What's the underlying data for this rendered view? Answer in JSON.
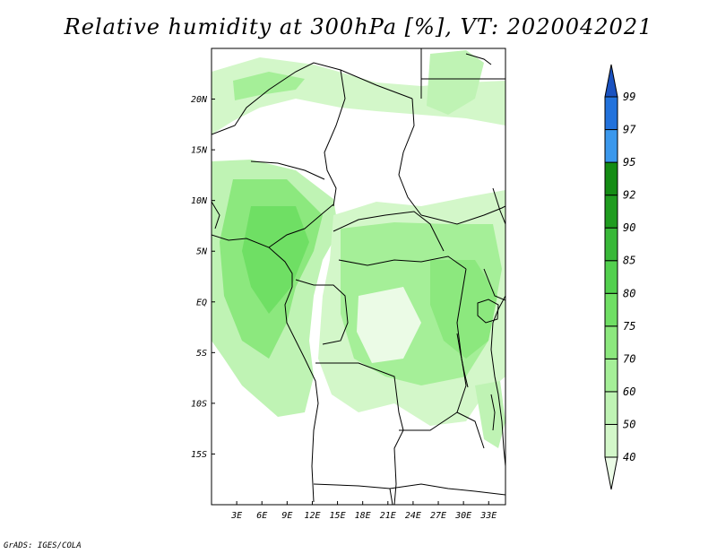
{
  "title": "Relative humidity at 300hPa [%], VT: 2020042021",
  "footer": "GrADS: IGES/COLA",
  "map": {
    "lon_range": [
      0,
      35
    ],
    "lat_range": [
      -20,
      25
    ],
    "lat_ticks": [
      {
        "lat": 20,
        "label": "20N"
      },
      {
        "lat": 15,
        "label": "15N"
      },
      {
        "lat": 10,
        "label": "10N"
      },
      {
        "lat": 5,
        "label": "5N"
      },
      {
        "lat": 0,
        "label": "EQ"
      },
      {
        "lat": -5,
        "label": "5S"
      },
      {
        "lat": -10,
        "label": "10S"
      },
      {
        "lat": -15,
        "label": "15S"
      }
    ],
    "lon_ticks": [
      {
        "lon": 3,
        "label": "3E"
      },
      {
        "lon": 6,
        "label": "6E"
      },
      {
        "lon": 9,
        "label": "9E"
      },
      {
        "lon": 12,
        "label": "12E"
      },
      {
        "lon": 15,
        "label": "15E"
      },
      {
        "lon": 18,
        "label": "18E"
      },
      {
        "lon": 21,
        "label": "21E"
      },
      {
        "lon": 24,
        "label": "24E"
      },
      {
        "lon": 27,
        "label": "27E"
      },
      {
        "lon": 30,
        "label": "30E"
      },
      {
        "lon": 33,
        "label": "33E"
      }
    ]
  },
  "colorbar": {
    "levels": [
      "40",
      "50",
      "60",
      "70",
      "75",
      "80",
      "85",
      "90",
      "92",
      "95",
      "97",
      "99"
    ],
    "colors": [
      "#ebfbe6",
      "#d3f7c9",
      "#bff3b4",
      "#a5ef98",
      "#8ce87e",
      "#6fdf64",
      "#52d04e",
      "#38b838",
      "#1f9c1f",
      "#148c14",
      "#3b98ec",
      "#2272dc",
      "#1a52c0"
    ]
  }
}
